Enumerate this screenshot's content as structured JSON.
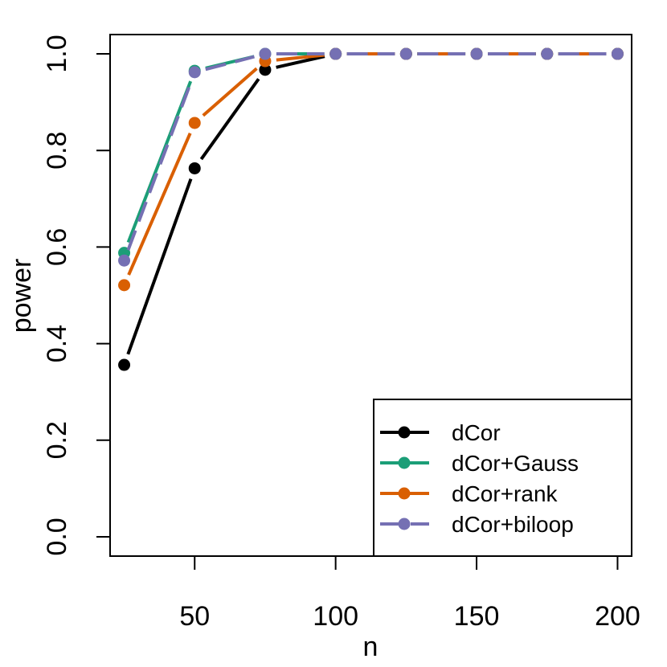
{
  "chart_data": {
    "type": "line",
    "title": "",
    "xlabel": "n",
    "ylabel": "power",
    "xlim": [
      20,
      205
    ],
    "ylim": [
      -0.04,
      1.04
    ],
    "x_ticks": [
      50,
      100,
      150,
      200
    ],
    "x_tick_labels": [
      "50",
      "100",
      "150",
      "200"
    ],
    "y_ticks": [
      0.0,
      0.2,
      0.4,
      0.6,
      0.8,
      1.0
    ],
    "y_tick_labels": [
      "0.0",
      "0.2",
      "0.4",
      "0.6",
      "0.8",
      "1.0"
    ],
    "grid": false,
    "legend_position": "bottom-right",
    "x": [
      25,
      50,
      75,
      100,
      125,
      150,
      175,
      200
    ],
    "series": [
      {
        "name": "dCor",
        "color": "#000000",
        "values": [
          0.356,
          0.763,
          0.967,
          1.0,
          1.0,
          1.0,
          1.0,
          1.0
        ]
      },
      {
        "name": "dCor+Gauss",
        "color": "#1b9e77",
        "values": [
          0.588,
          0.965,
          1.0,
          1.0,
          1.0,
          1.0,
          1.0,
          1.0
        ]
      },
      {
        "name": "dCor+rank",
        "color": "#d95f02",
        "values": [
          0.521,
          0.857,
          0.985,
          1.0,
          1.0,
          1.0,
          1.0,
          1.0
        ]
      },
      {
        "name": "dCor+biloop",
        "color": "#7570b3",
        "values": [
          0.572,
          0.962,
          1.0,
          1.0,
          1.0,
          1.0,
          1.0,
          1.0
        ]
      }
    ]
  }
}
